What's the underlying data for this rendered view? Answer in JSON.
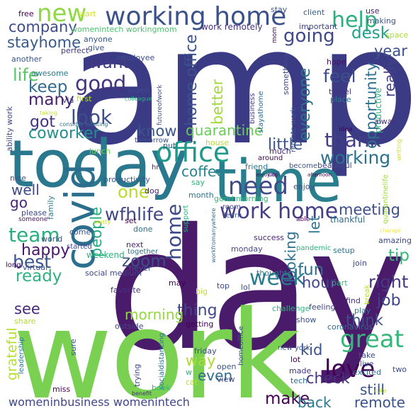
{
  "palette": {
    "dark_purple": "#440154",
    "indigo": "#3b3f8c",
    "blue": "#31688e",
    "teal": "#21918c",
    "green": "#35b779",
    "lime": "#7ad151",
    "yellow": "#c8e020",
    "background": "#ffffff"
  },
  "words": [
    {
      "text": "amp",
      "c": "#3b3b85"
    },
    {
      "text": "day",
      "c": "#4a1a6b"
    },
    {
      "text": "work",
      "c": "#7ad151"
    },
    {
      "text": "today",
      "c": "#2a788e"
    },
    {
      "text": "time",
      "c": "#2a7f8e"
    },
    {
      "text": "covid",
      "c": "#2c6e8e"
    },
    {
      "text": "working home",
      "c": "#3b518b"
    },
    {
      "text": "new",
      "c": "#8fd744"
    },
    {
      "text": "office",
      "c": "#1f9a8a"
    },
    {
      "text": "need",
      "c": "#3e4a89"
    },
    {
      "text": "work home",
      "c": "#433e85"
    },
    {
      "text": "week",
      "c": "#287c8e"
    },
    {
      "text": "love",
      "c": "#440154"
    },
    {
      "text": "great",
      "c": "#35b779"
    },
    {
      "text": "help",
      "c": "#2ab07f"
    },
    {
      "text": "company",
      "c": "#3e4c8a"
    },
    {
      "text": "stayhome",
      "c": "#375b8d"
    },
    {
      "text": "going",
      "c": "#3f4889"
    },
    {
      "text": "desk",
      "c": "#1fa088"
    },
    {
      "text": "want",
      "c": "#443a83"
    },
    {
      "text": "good",
      "c": "#46337e"
    },
    {
      "text": "keep",
      "c": "#2f6c8e"
    },
    {
      "text": "life",
      "c": "#58c765"
    },
    {
      "text": "many",
      "c": "#481f70"
    },
    {
      "text": "look",
      "c": "#3d4d8a"
    },
    {
      "text": "got",
      "c": "#46327e"
    },
    {
      "text": "coworker",
      "c": "#20928c"
    },
    {
      "text": "know",
      "c": "#39568c"
    },
    {
      "text": "thank",
      "c": "#433d84"
    },
    {
      "text": "working",
      "c": "#2c728e"
    },
    {
      "text": "little",
      "c": "#3a548c"
    },
    {
      "text": "quarantine",
      "c": "#6ccd5a"
    },
    {
      "text": "coffee",
      "c": "#26828e"
    },
    {
      "text": "one",
      "c": "#b8de29"
    },
    {
      "text": "feel",
      "c": "#3c4f8a"
    },
    {
      "text": "year",
      "c": "#3d4e8a"
    },
    {
      "text": "opportunity",
      "c": "#2e6f8e"
    },
    {
      "text": "really",
      "c": "#424086"
    },
    {
      "text": "everyone",
      "c": "#2d708e"
    },
    {
      "text": "better",
      "c": "#a2da37"
    },
    {
      "text": "home office",
      "c": "#3b528b"
    },
    {
      "text": "home",
      "c": "#3e4989"
    },
    {
      "text": "wfhlife",
      "c": "#3f4788"
    },
    {
      "text": "meeting",
      "c": "#3c4f8a"
    },
    {
      "text": "well",
      "c": "#3e4989"
    },
    {
      "text": "go",
      "c": "#482475"
    },
    {
      "text": "team",
      "c": "#29af7f"
    },
    {
      "text": "happy",
      "c": "#481769"
    },
    {
      "text": "best",
      "c": "#3a538b"
    },
    {
      "text": "ready",
      "c": "#2db27d"
    },
    {
      "text": "see",
      "c": "#482878"
    },
    {
      "text": "people",
      "c": "#25ab82"
    },
    {
      "text": "zoom",
      "c": "#3d4e8a"
    },
    {
      "text": "looking",
      "c": "#2d708e"
    },
    {
      "text": "fun",
      "c": "#2d718e"
    },
    {
      "text": "hour",
      "c": "#3f4889"
    },
    {
      "text": "tip",
      "c": "#37b878"
    },
    {
      "text": "right",
      "c": "#453882"
    },
    {
      "text": "job",
      "c": "#404588"
    },
    {
      "text": "think",
      "c": "#3c508b"
    },
    {
      "text": "let",
      "c": "#2c738e"
    },
    {
      "text": "thing",
      "c": "#3f4889"
    },
    {
      "text": "morning",
      "c": "#95d840"
    },
    {
      "text": "kid",
      "c": "#3b528b"
    },
    {
      "text": "way",
      "c": "#addc30"
    },
    {
      "text": "even",
      "c": "#2f6c8e"
    },
    {
      "text": "check",
      "c": "#46327e"
    },
    {
      "text": "grateful",
      "c": "#b5de2b"
    },
    {
      "text": "make",
      "c": "#440154"
    },
    {
      "text": "back",
      "c": "#2a788e"
    },
    {
      "text": "remote",
      "c": "#3a548c"
    },
    {
      "text": "still",
      "c": "#3b528b"
    },
    {
      "text": "womeninbusiness womenintech",
      "c": "#404688"
    },
    {
      "text": "free",
      "c": "#440154"
    },
    {
      "text": "start",
      "c": "#d2e21b"
    },
    {
      "text": "womenintech workingmom",
      "c": "#4ac16d"
    },
    {
      "text": "work remotely",
      "c": "#46307e"
    },
    {
      "text": "stay",
      "c": "#39558c"
    },
    {
      "text": "client",
      "c": "#355f8d"
    },
    {
      "text": "use",
      "c": "#482173"
    },
    {
      "text": "making",
      "c": "#3b528b"
    },
    {
      "text": "important",
      "c": "#3f4788"
    },
    {
      "text": "space",
      "c": "#aadc32"
    },
    {
      "text": "mom",
      "c": "#440154"
    },
    {
      "text": "something",
      "c": "#3e4a89"
    },
    {
      "text": "hope",
      "c": "#471164"
    },
    {
      "text": "travel",
      "c": "#46327e"
    },
    {
      "text": "place",
      "c": "#2a778e"
    },
    {
      "text": "productive",
      "c": "#2fb47c"
    },
    {
      "text": "alway",
      "c": "#46307e"
    },
    {
      "text": "writing",
      "c": "#d8e219"
    },
    {
      "text": "anyone",
      "c": "#39568c"
    },
    {
      "text": "give",
      "c": "#39568c"
    },
    {
      "text": "perfect",
      "c": "#443983"
    },
    {
      "text": "another",
      "c": "#39568c"
    },
    {
      "text": "awesome",
      "c": "#2a788e"
    },
    {
      "text": "employee",
      "c": "#3e4c8a"
    },
    {
      "text": "video",
      "c": "#3e4989"
    },
    {
      "text": "colleague",
      "c": "#29af7f"
    },
    {
      "text": "futureofwork",
      "c": "#3b518b"
    },
    {
      "text": "business",
      "c": "#443983"
    },
    {
      "text": "stayathome",
      "c": "#2f6b8e"
    },
    {
      "text": "ability work",
      "c": "#3f4889"
    },
    {
      "text": "via",
      "c": "#404688"
    },
    {
      "text": "first",
      "c": "#b8de29"
    },
    {
      "text": "taking",
      "c": "#c0df25"
    },
    {
      "text": "consider locating",
      "c": "#2c738e"
    },
    {
      "text": "lunch",
      "c": "#6ccd5a"
    },
    {
      "text": "tomorrow",
      "c": "#3b528b"
    },
    {
      "text": "put",
      "c": "#39568c"
    },
    {
      "text": "house",
      "c": "#b5de2b"
    },
    {
      "text": "idea",
      "c": "#440154"
    },
    {
      "text": "much",
      "c": "#482475"
    },
    {
      "text": "remote work",
      "c": "#3b528b"
    },
    {
      "text": "around",
      "c": "#440154"
    },
    {
      "text": "beautiful",
      "c": "#414487"
    },
    {
      "text": "hr",
      "c": "#481769"
    },
    {
      "text": "friend",
      "c": "#2a788e"
    },
    {
      "text": "become",
      "c": "#3b528b"
    },
    {
      "text": "call",
      "c": "#3f4889"
    },
    {
      "text": "enjoying",
      "c": "#440154"
    },
    {
      "text": "afternoon",
      "c": "#440154"
    },
    {
      "text": "enjoy",
      "c": "#3b528b"
    },
    {
      "text": "quarantinelife",
      "c": "#9bd93c"
    },
    {
      "text": "productivity",
      "c": "#3a548c"
    },
    {
      "text": "say",
      "c": "#2db27d"
    },
    {
      "text": "nice",
      "c": "#3b528b"
    },
    {
      "text": "dog",
      "c": "#482475"
    },
    {
      "text": "month",
      "c": "#2c738e"
    },
    {
      "text": "good morning",
      "c": "#35b779"
    },
    {
      "text": "room",
      "c": "#3e4989"
    },
    {
      "text": "learn",
      "c": "#39568c"
    },
    {
      "text": "family",
      "c": "#2a788e"
    },
    {
      "text": "support",
      "c": "#2db27d"
    },
    {
      "text": "please",
      "c": "#3e4989"
    },
    {
      "text": "come",
      "c": "#3b528b"
    },
    {
      "text": "pretty",
      "c": "#d2e21b"
    },
    {
      "text": "set",
      "c": "#440154"
    },
    {
      "text": "thankful",
      "c": "#2f6c8e"
    },
    {
      "text": "someone",
      "c": "#471164"
    },
    {
      "text": "world",
      "c": "#3e4c8a"
    },
    {
      "text": "started",
      "c": "#3f4788"
    },
    {
      "text": "weekend",
      "c": "#2db27d"
    },
    {
      "text": "done",
      "c": "#2c738e"
    },
    {
      "text": "able",
      "c": "#440154"
    },
    {
      "text": "change",
      "c": "#fde725"
    },
    {
      "text": "long",
      "c": "#440154"
    },
    {
      "text": "virtual",
      "c": "#3b528b"
    },
    {
      "text": "social medium",
      "c": "#414487"
    },
    {
      "text": "workfromanywhere",
      "c": "#2f6c8e"
    },
    {
      "text": "next",
      "c": "#482878"
    },
    {
      "text": "together",
      "c": "#2c738e"
    },
    {
      "text": "success",
      "c": "#482475"
    },
    {
      "text": "amazing",
      "c": "#3e4989"
    },
    {
      "text": "monday",
      "c": "#3f4889"
    },
    {
      "text": "pandemic",
      "c": "#2db27d"
    },
    {
      "text": "setup",
      "c": "#2c738e"
    },
    {
      "text": "never",
      "c": "#39568c"
    },
    {
      "text": "may",
      "c": "#440154"
    },
    {
      "text": "big",
      "c": "#c0df25"
    },
    {
      "text": "top",
      "c": "#3e4989"
    },
    {
      "text": "lol",
      "c": "#3b528b"
    },
    {
      "text": "join",
      "c": "#3e4989"
    },
    {
      "text": "thought",
      "c": "#2a788e"
    },
    {
      "text": "part",
      "c": "#35b779"
    },
    {
      "text": "break",
      "c": "#b8de29"
    },
    {
      "text": "find",
      "c": "#46307e"
    },
    {
      "text": "play",
      "c": "#2a788e"
    },
    {
      "text": "challenge",
      "c": "#2db27d"
    },
    {
      "text": "feeling",
      "c": "#414487"
    },
    {
      "text": "coronavirus",
      "c": "#2f6c8e"
    },
    {
      "text": "share",
      "c": "#b5de2b"
    },
    {
      "text": "favorite",
      "c": "#46327e"
    },
    {
      "text": "outside",
      "c": "#3f4889"
    },
    {
      "text": "getting",
      "c": "#440154"
    },
    {
      "text": "socialdistancing",
      "c": "#2f6c8e"
    },
    {
      "text": "homeoffice",
      "c": "#3e4989"
    },
    {
      "text": "show",
      "c": "#3b528b"
    },
    {
      "text": "leadership",
      "c": "#2a788e"
    },
    {
      "text": "sure",
      "c": "#3b528b"
    },
    {
      "text": "friday",
      "c": "#3e4989"
    },
    {
      "text": "new york",
      "c": "#39568c"
    },
    {
      "text": "lot",
      "c": "#440154"
    },
    {
      "text": "take",
      "c": "#3e4989"
    },
    {
      "text": "live",
      "c": "#3b528b"
    },
    {
      "text": "excited",
      "c": "#2f6c8e"
    },
    {
      "text": "trying",
      "c": "#3f4889"
    },
    {
      "text": "w",
      "c": "#2db27d"
    },
    {
      "text": "open",
      "c": "#3b528b"
    },
    {
      "text": "made",
      "c": "#46327e"
    },
    {
      "text": "two",
      "c": "#3e4989"
    },
    {
      "text": "cat",
      "c": "#b5de2b"
    },
    {
      "text": "view",
      "c": "#3e4989"
    },
    {
      "text": "tech",
      "c": "#2f6c8e"
    },
    {
      "text": "cute",
      "c": "#b5de2b"
    },
    {
      "text": "miss",
      "c": "#440154"
    },
    {
      "text": "benefit",
      "c": "#46307e"
    },
    {
      "text": "book",
      "c": "#35b779"
    }
  ]
}
